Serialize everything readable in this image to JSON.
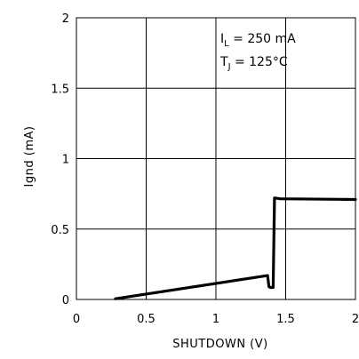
{
  "chart_data": {
    "type": "line",
    "xlabel": "SHUTDOWN (V)",
    "ylabel": "Ignd (mA)",
    "xlim": [
      0,
      2
    ],
    "ylim": [
      0,
      2
    ],
    "grid": true,
    "x_ticks": [
      "0",
      "0.5",
      "1",
      "1.5",
      "2"
    ],
    "y_ticks": [
      "0",
      "0.5",
      "1",
      "1.5",
      "2"
    ],
    "annotations": {
      "line1": {
        "main": "I",
        "sub": "L",
        "rest": " = 250 mA"
      },
      "line2": {
        "main": "T",
        "sub": "J",
        "rest": " = 125°C"
      }
    },
    "series": [
      {
        "x": [
          0.28,
          1.37,
          1.38,
          1.39,
          1.41,
          1.42,
          1.43,
          1.46,
          2.0
        ],
        "y": [
          0.005,
          0.17,
          0.09,
          0.085,
          0.085,
          0.72,
          0.72,
          0.715,
          0.71
        ]
      }
    ]
  }
}
